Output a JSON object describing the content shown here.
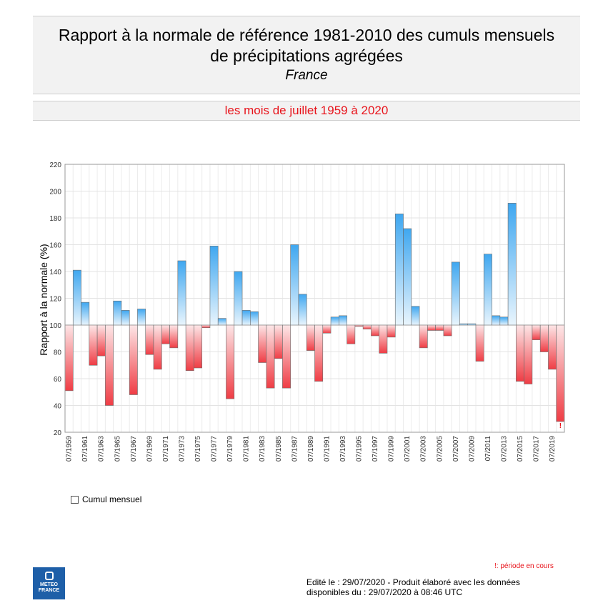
{
  "header": {
    "title_line1": "Rapport à la normale de référence 1981-2010 des cumuls mensuels",
    "title_line2": "de précipitations agrégées",
    "region": "France",
    "period": "les mois de juillet 1959 à 2020"
  },
  "legend": {
    "label": "Cumul mensuel"
  },
  "note": "!: période en cours",
  "marker_glyph": "!",
  "footer": {
    "line1": "Edité le : 29/07/2020 - Produit élaboré avec les données",
    "line2": "disponibles du : 29/07/2020 à 08:46 UTC"
  },
  "logo": {
    "line1": "METEO",
    "line2": "FRANCE"
  },
  "colors": {
    "above": "#3fa7f0",
    "below": "#ef3d45",
    "title_red": "#e8131b"
  },
  "chart_data": {
    "type": "bar",
    "ylabel": "Rapport à la normale (%)",
    "xlabel": "",
    "ylim": [
      20,
      220
    ],
    "yticks": [
      20,
      40,
      60,
      80,
      100,
      120,
      140,
      160,
      180,
      200,
      220
    ],
    "baseline": 100,
    "grid": true,
    "categories": [
      "07/1959",
      "07/1960",
      "07/1961",
      "07/1962",
      "07/1963",
      "07/1964",
      "07/1965",
      "07/1966",
      "07/1967",
      "07/1968",
      "07/1969",
      "07/1970",
      "07/1971",
      "07/1972",
      "07/1973",
      "07/1974",
      "07/1975",
      "07/1976",
      "07/1977",
      "07/1978",
      "07/1979",
      "07/1980",
      "07/1981",
      "07/1982",
      "07/1983",
      "07/1984",
      "07/1985",
      "07/1986",
      "07/1987",
      "07/1988",
      "07/1989",
      "07/1990",
      "07/1991",
      "07/1992",
      "07/1993",
      "07/1994",
      "07/1995",
      "07/1996",
      "07/1997",
      "07/1998",
      "07/1999",
      "07/2000",
      "07/2001",
      "07/2002",
      "07/2003",
      "07/2004",
      "07/2005",
      "07/2006",
      "07/2007",
      "07/2008",
      "07/2009",
      "07/2010",
      "07/2011",
      "07/2012",
      "07/2013",
      "07/2014",
      "07/2015",
      "07/2016",
      "07/2017",
      "07/2018",
      "07/2019",
      "07/2020"
    ],
    "tick_labels": [
      "07/1959",
      "07/1961",
      "07/1963",
      "07/1965",
      "07/1967",
      "07/1969",
      "07/1971",
      "07/1973",
      "07/1975",
      "07/1977",
      "07/1979",
      "07/1981",
      "07/1983",
      "07/1985",
      "07/1987",
      "07/1989",
      "07/1991",
      "07/1993",
      "07/1995",
      "07/1997",
      "07/1999",
      "07/2001",
      "07/2003",
      "07/2005",
      "07/2007",
      "07/2009",
      "07/2011",
      "07/2013",
      "07/2015",
      "07/2017",
      "07/2019"
    ],
    "values": [
      51,
      141,
      117,
      70,
      77,
      40,
      118,
      111,
      48,
      112,
      78,
      67,
      86,
      83,
      148,
      66,
      68,
      98,
      159,
      105,
      45,
      140,
      111,
      110,
      72,
      53,
      75,
      53,
      160,
      123,
      81,
      58,
      94,
      106,
      107,
      86,
      99,
      97,
      92,
      79,
      91,
      183,
      172,
      114,
      83,
      96,
      96,
      92,
      147,
      101,
      101,
      73,
      153,
      107,
      106,
      191,
      58,
      56,
      89,
      80,
      67,
      28
    ],
    "in_progress_index": 61
  }
}
